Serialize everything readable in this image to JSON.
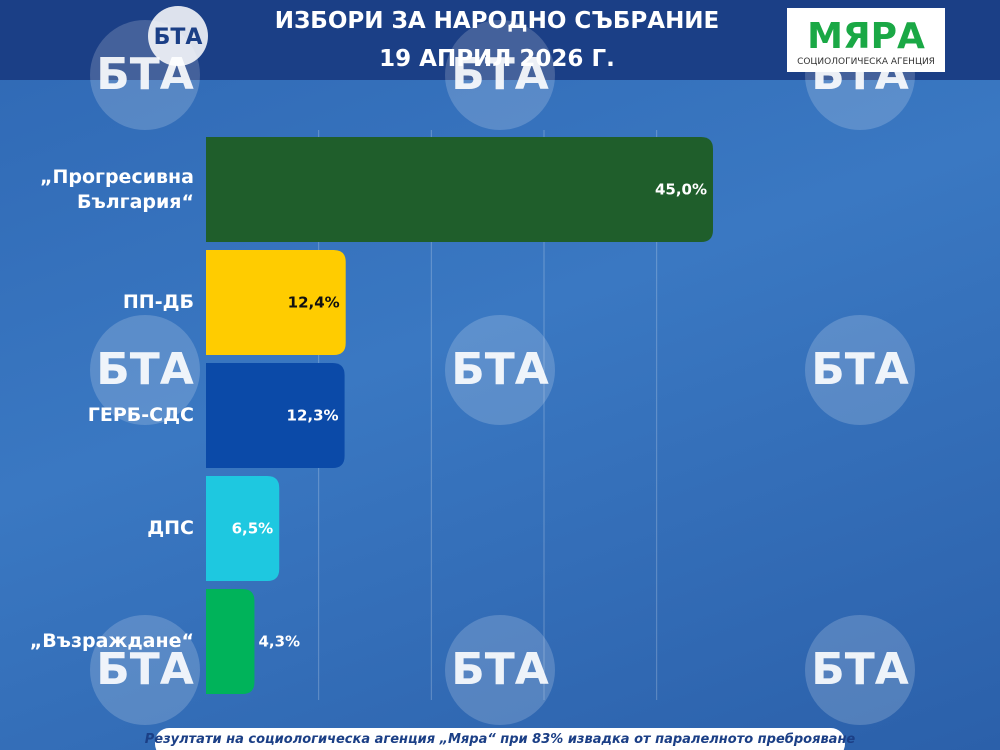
{
  "chart_data": {
    "type": "hbar",
    "title": "ИЗБОРИ ЗА НАРОДНО СЪБРАНИЕ",
    "subtitle": "19 АПРИЛ 2026 Г.",
    "logo_left": "БТА",
    "logo_right": "МЯРА",
    "logo_right_caption": "СОЦИОЛОГИЧЕСКА АГЕНЦИЯ",
    "watermark": "БТА",
    "note": "Резултати на социологическа агенция „Мяра“ при 83% извадка от паралелното преброяване",
    "categories": [
      "„Прогресивна България“",
      "ПП-ДБ",
      "ГЕРБ-СДС",
      "ДПС",
      "„Възраждане“"
    ],
    "values": [
      45.0,
      12.4,
      12.3,
      6.5,
      4.3
    ],
    "value_labels": [
      "45,0%",
      "12,4%",
      "12,3%",
      "6,5%",
      "4,3%"
    ],
    "colors": [
      "#1f5e2b",
      "#ffcc00",
      "#0b4aa8",
      "#1ec8e0",
      "#00b35a"
    ],
    "xlim": [
      0,
      45
    ],
    "xticks": [
      10,
      20,
      30,
      40
    ],
    "grid": true
  }
}
